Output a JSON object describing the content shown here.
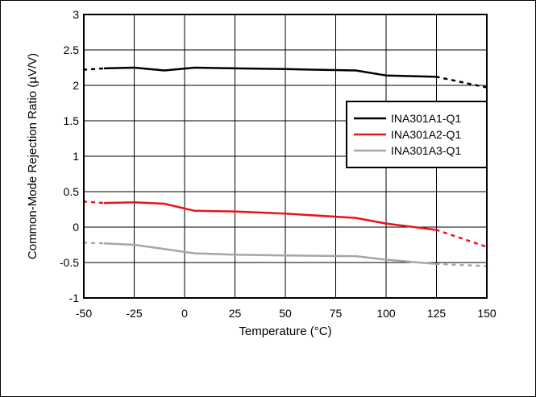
{
  "chart_data": {
    "type": "line",
    "xlabel": "Temperature (°C)",
    "ylabel": "Common-Mode Rejection Ratio (µV/V)",
    "xlim": [
      -50,
      150
    ],
    "ylim": [
      -1,
      3
    ],
    "xticks": [
      -50,
      -25,
      0,
      25,
      50,
      75,
      100,
      125,
      150
    ],
    "yticks": [
      -1,
      -0.5,
      0,
      0.5,
      1,
      1.5,
      2,
      2.5,
      3
    ],
    "xtick_labels": [
      "-50",
      "-25",
      "0",
      "25",
      "50",
      "75",
      "100",
      "125",
      "150"
    ],
    "ytick_labels": [
      "-1",
      "-0.5",
      "0",
      "0.5",
      "1",
      "1.5",
      "2",
      "2.5",
      "3"
    ],
    "grid": true,
    "legend_position": "right",
    "series": [
      {
        "name": "INA301A1-Q1",
        "color": "#000000",
        "x": [
          -40,
          -25,
          -10,
          5,
          25,
          50,
          85,
          100,
          125
        ],
        "y": [
          2.24,
          2.25,
          2.21,
          2.25,
          2.24,
          2.23,
          2.21,
          2.14,
          2.12
        ],
        "dotted_left": {
          "x": [
            -50,
            -40
          ],
          "y": [
            2.22,
            2.24
          ]
        },
        "dotted_right": {
          "x": [
            125,
            150
          ],
          "y": [
            2.12,
            1.97
          ]
        }
      },
      {
        "name": "INA301A2-Q1",
        "color": "#e8141b",
        "x": [
          -40,
          -25,
          -10,
          5,
          25,
          50,
          85,
          100,
          125
        ],
        "y": [
          0.34,
          0.35,
          0.33,
          0.23,
          0.22,
          0.19,
          0.13,
          0.05,
          -0.04
        ],
        "dotted_left": {
          "x": [
            -50,
            -40
          ],
          "y": [
            0.36,
            0.34
          ]
        },
        "dotted_right": {
          "x": [
            125,
            150
          ],
          "y": [
            -0.04,
            -0.28
          ]
        }
      },
      {
        "name": "INA301A3-Q1",
        "color": "#a6a6a6",
        "x": [
          -40,
          -25,
          -10,
          5,
          25,
          50,
          85,
          100,
          125
        ],
        "y": [
          -0.23,
          -0.25,
          -0.31,
          -0.37,
          -0.39,
          -0.4,
          -0.41,
          -0.46,
          -0.52
        ],
        "dotted_left": {
          "x": [
            -50,
            -40
          ],
          "y": [
            -0.22,
            -0.23
          ]
        },
        "dotted_right": {
          "x": [
            125,
            150
          ],
          "y": [
            -0.52,
            -0.55
          ]
        }
      }
    ]
  }
}
